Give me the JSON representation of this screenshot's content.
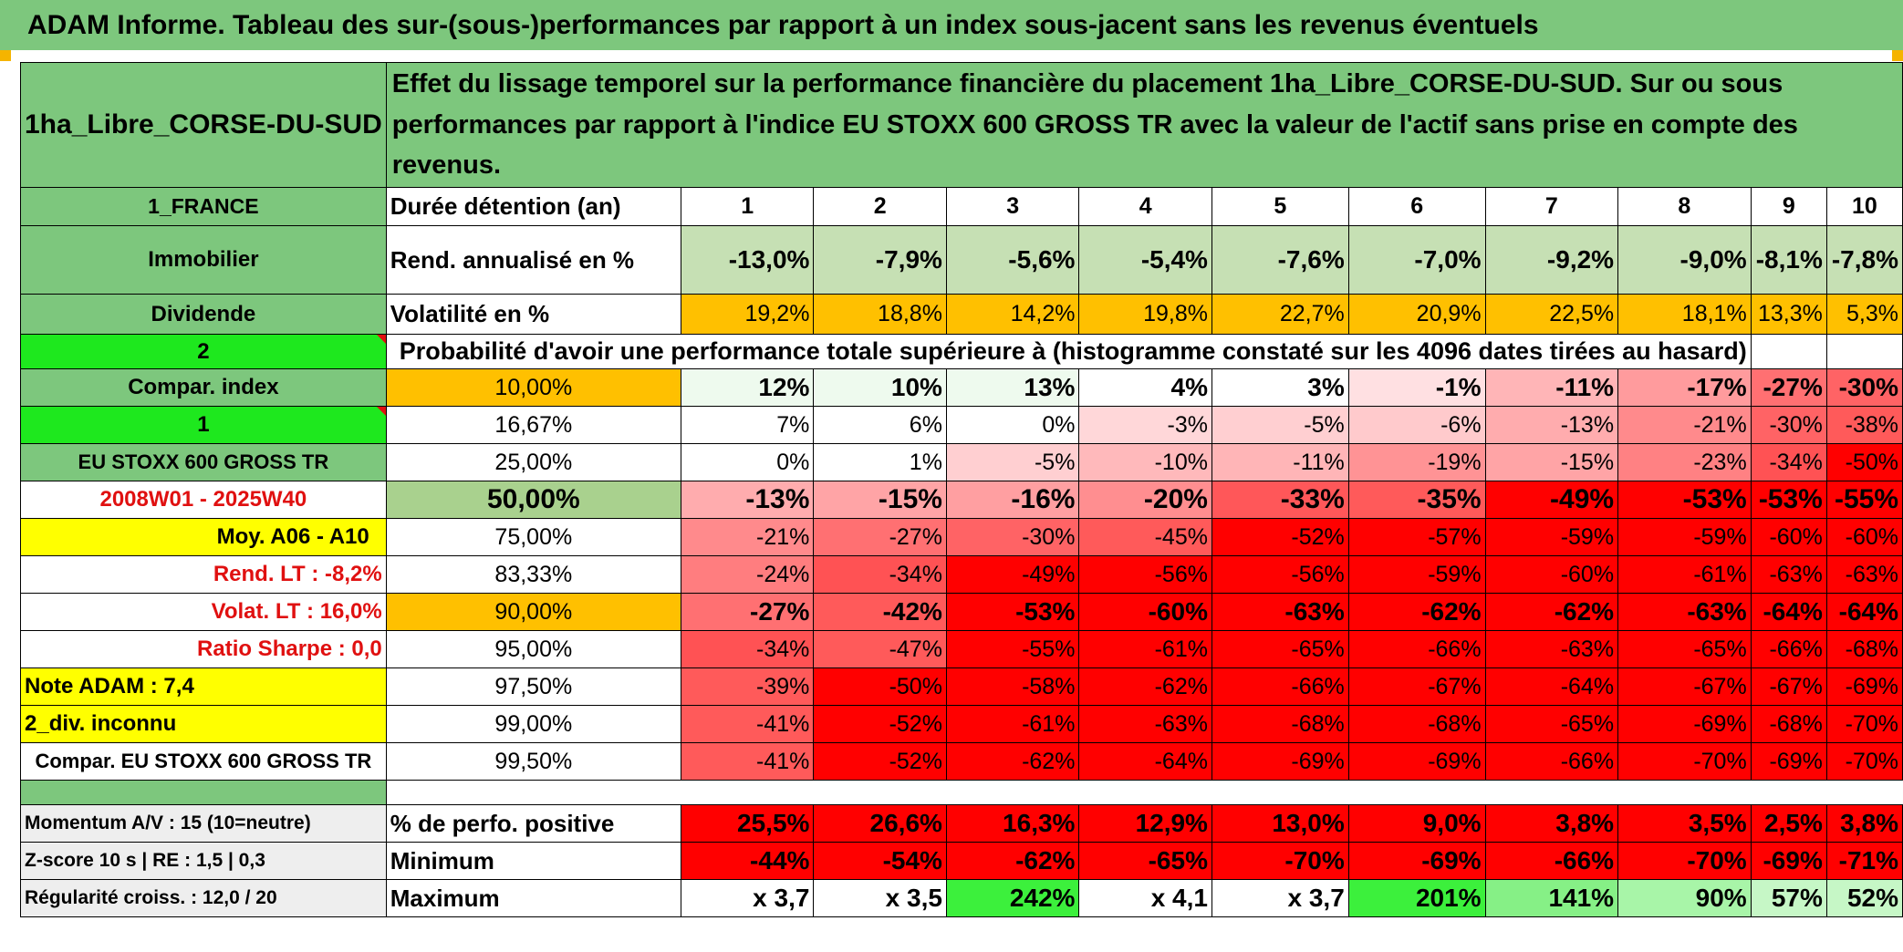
{
  "title": "ADAM Informe. Tableau des sur-(sous-)performances par rapport à un index sous-jacent sans les revenus éventuels",
  "left": {
    "fund": "1ha_Libre_CORSE-DU-SUD",
    "country": "1_FRANCE",
    "category": "Immobilier",
    "dividend": "Dividende",
    "num2": "2",
    "compar_index": "Compar. index",
    "num1": "1",
    "index_name": "EU STOXX 600 GROSS TR",
    "period": "2008W01 - 2025W40",
    "moy": "Moy. A06 - A10",
    "rend_lt": "Rend. LT :    -8,2%",
    "volat_lt": "Volat. LT :    16,0%",
    "sharpe": "Ratio Sharpe :    0,0",
    "note": "Note ADAM : 7,4",
    "div": "2_div. inconnu",
    "compar_full": "Compar. EU STOXX 600 GROSS TR",
    "momentum": "Momentum A/V : 15 (10=neutre)",
    "zscore": "Z-score 10 s | RE : 1,5 | 0,3",
    "regularite": "Régularité croiss. : 12,0 / 20"
  },
  "description": "Effet du lissage temporel sur la performance financière du placement 1ha_Libre_CORSE-DU-SUD. Sur ou sous performances par rapport à l'indice EU STOXX 600 GROSS TR avec la valeur de l'actif sans prise en compte des revenus.",
  "labels": {
    "duree": "Durée détention (an)",
    "rend": "Rend. annualisé en %",
    "vol": "Volatilité en %",
    "prob": "Probabilité d'avoir une performance totale supérieure à (histogramme constaté sur les 4096 dates tirées au hasard)",
    "pos": "% de perfo. positive",
    "min": "Minimum",
    "max": "Maximum"
  },
  "years": [
    "1",
    "2",
    "3",
    "4",
    "5",
    "6",
    "7",
    "8",
    "9",
    "10"
  ],
  "rend": [
    "-13,0%",
    "-7,9%",
    "-5,6%",
    "-5,4%",
    "-7,6%",
    "-7,0%",
    "-9,2%",
    "-9,0%",
    "-8,1%",
    "-7,8%"
  ],
  "vol": [
    "19,2%",
    "18,8%",
    "14,2%",
    "19,8%",
    "22,7%",
    "20,9%",
    "22,5%",
    "18,1%",
    "13,3%",
    "5,3%"
  ],
  "quantiles": [
    {
      "p": "10,00%",
      "v": [
        "12%",
        "10%",
        "13%",
        "4%",
        "3%",
        "-1%",
        "-11%",
        "-17%",
        "-27%",
        "-30%"
      ]
    },
    {
      "p": "16,67%",
      "v": [
        "7%",
        "6%",
        "0%",
        "-3%",
        "-5%",
        "-6%",
        "-13%",
        "-21%",
        "-30%",
        "-38%"
      ]
    },
    {
      "p": "25,00%",
      "v": [
        "0%",
        "1%",
        "-5%",
        "-10%",
        "-11%",
        "-19%",
        "-15%",
        "-23%",
        "-34%",
        "-50%"
      ]
    },
    {
      "p": "50,00%",
      "v": [
        "-13%",
        "-15%",
        "-16%",
        "-20%",
        "-33%",
        "-35%",
        "-49%",
        "-53%",
        "-53%",
        "-55%"
      ]
    },
    {
      "p": "75,00%",
      "v": [
        "-21%",
        "-27%",
        "-30%",
        "-45%",
        "-52%",
        "-57%",
        "-59%",
        "-59%",
        "-60%",
        "-60%"
      ]
    },
    {
      "p": "83,33%",
      "v": [
        "-24%",
        "-34%",
        "-49%",
        "-56%",
        "-56%",
        "-59%",
        "-60%",
        "-61%",
        "-63%",
        "-63%"
      ]
    },
    {
      "p": "90,00%",
      "v": [
        "-27%",
        "-42%",
        "-53%",
        "-60%",
        "-63%",
        "-62%",
        "-62%",
        "-63%",
        "-64%",
        "-64%"
      ]
    },
    {
      "p": "95,00%",
      "v": [
        "-34%",
        "-47%",
        "-55%",
        "-61%",
        "-65%",
        "-66%",
        "-63%",
        "-65%",
        "-66%",
        "-68%"
      ]
    },
    {
      "p": "97,50%",
      "v": [
        "-39%",
        "-50%",
        "-58%",
        "-62%",
        "-66%",
        "-67%",
        "-64%",
        "-67%",
        "-67%",
        "-69%"
      ]
    },
    {
      "p": "99,00%",
      "v": [
        "-41%",
        "-52%",
        "-61%",
        "-63%",
        "-68%",
        "-68%",
        "-65%",
        "-69%",
        "-68%",
        "-70%"
      ]
    },
    {
      "p": "99,50%",
      "v": [
        "-41%",
        "-52%",
        "-62%",
        "-64%",
        "-69%",
        "-69%",
        "-66%",
        "-70%",
        "-69%",
        "-70%"
      ]
    }
  ],
  "pos": [
    "25,5%",
    "26,6%",
    "16,3%",
    "12,9%",
    "13,0%",
    "9,0%",
    "3,8%",
    "3,5%",
    "2,5%",
    "3,8%"
  ],
  "min": [
    "-44%",
    "-54%",
    "-62%",
    "-65%",
    "-70%",
    "-69%",
    "-66%",
    "-70%",
    "-69%",
    "-71%"
  ],
  "max": [
    "x 3,7",
    "x 3,5",
    "242%",
    "x 4,1",
    "x 3,7",
    "201%",
    "141%",
    "90%",
    "57%",
    "52%"
  ],
  "colors": {
    "green": "#7dc77d",
    "lime": "#1ee81e",
    "yellow": "#ffff00",
    "orange": "#ffc000",
    "light_green": "#c6e0b4",
    "red": "#e01010",
    "heat_red": "#ff0000"
  }
}
